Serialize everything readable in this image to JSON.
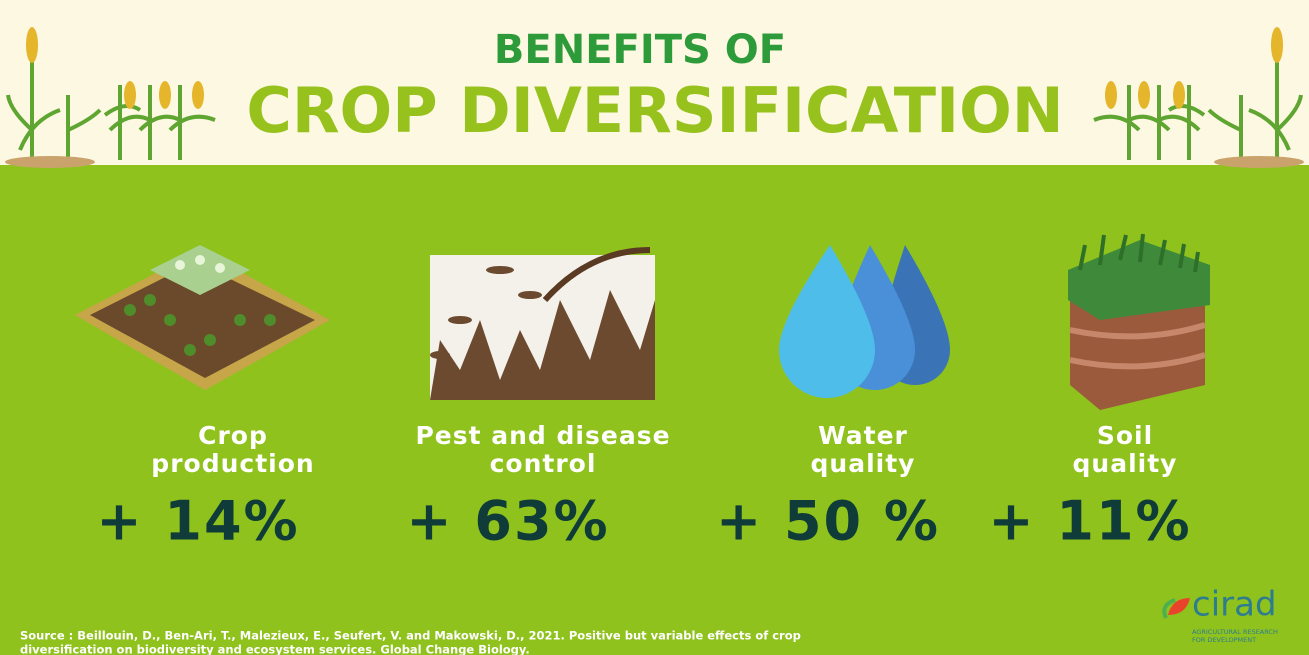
{
  "header": {
    "title_line_1": "BENEFITS OF",
    "title_line_2": "CROP DIVERSIFICATION"
  },
  "benefits": [
    {
      "label_lines": [
        "Crop",
        "production"
      ],
      "value": "+ 14%"
    },
    {
      "label_lines": [
        "Pest and disease",
        "control"
      ],
      "value": "+ 63%"
    },
    {
      "label_lines": [
        "Water",
        "quality"
      ],
      "value": "+ 50 %"
    },
    {
      "label_lines": [
        "Soil",
        "quality"
      ],
      "value": "+ 11%"
    }
  ],
  "source_lines": [
    "Source : Beillouin, D., Ben-Ari, T., Malezieux, E., Seufert, V. and Makowski, D., 2021. Positive but variable effects of crop",
    "diversification on biodiversity and ecosystem services. Global Change Biology."
  ],
  "logo": {
    "name": "cirad",
    "tagline_lines": [
      "AGRICULTURAL RESEARCH",
      "FOR DEVELOPMENT"
    ]
  }
}
